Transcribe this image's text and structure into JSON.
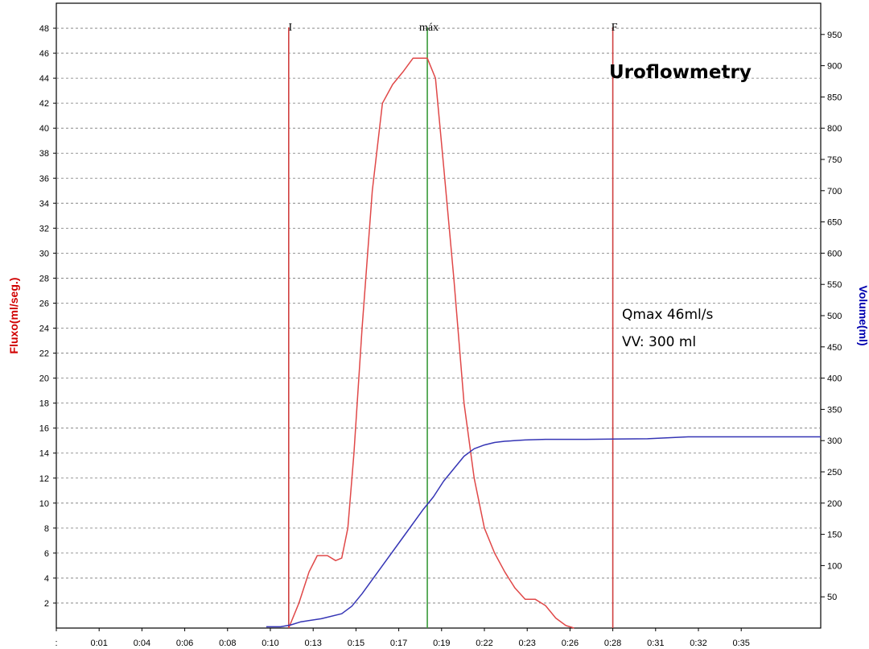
{
  "chart_data": {
    "type": "line",
    "title": "Uroflowmetry",
    "annotations": [
      "Qmax 46ml/s",
      "VV: 300 ml"
    ],
    "ylabel": "Fluxo(ml/seg.)",
    "y2label": "Volume(ml)",
    "x_ticks": [
      ":",
      "0:01",
      "0:04",
      "0:06",
      "0:08",
      "0:10",
      "0:13",
      "0:15",
      "0:17",
      "0:19",
      "0:22",
      "0:23",
      "0:26",
      "0:28",
      "0:31",
      "0:32",
      "0:35"
    ],
    "y_ticks": [
      2,
      4,
      6,
      8,
      10,
      12,
      14,
      16,
      18,
      20,
      22,
      24,
      26,
      28,
      30,
      32,
      34,
      36,
      38,
      40,
      42,
      44,
      46,
      48
    ],
    "y2_ticks": [
      50,
      100,
      150,
      200,
      250,
      300,
      350,
      400,
      450,
      500,
      550,
      600,
      650,
      700,
      750,
      800,
      850,
      900,
      950
    ],
    "xlim_seconds": [
      -1,
      36.5
    ],
    "ylim": [
      0,
      50
    ],
    "y2lim": [
      0,
      1000
    ],
    "grid": true,
    "markers": [
      {
        "label": "I",
        "x": 10.4,
        "color": "#d04040"
      },
      {
        "label": "máx",
        "x": 17.2,
        "color": "#3a9a3a"
      },
      {
        "label": "F",
        "x": 26.3,
        "color": "#d04040"
      }
    ],
    "series": [
      {
        "color": "#e04848",
        "axis": "left",
        "x": [
          10.4,
          10.9,
          11.4,
          11.8,
          12.3,
          12.7,
          13.0,
          13.3,
          13.6,
          14.0,
          14.5,
          15.0,
          15.5,
          16.0,
          16.5,
          16.8,
          17.2,
          17.6,
          18.0,
          18.5,
          19.0,
          19.5,
          20.0,
          20.5,
          21.0,
          21.5,
          22.0,
          22.5,
          23.0,
          23.5,
          24.0,
          24.4
        ],
        "y": [
          0,
          2,
          4.5,
          5.8,
          5.8,
          5.4,
          5.6,
          8,
          14,
          24,
          35,
          42,
          43.5,
          44.5,
          45.6,
          45.6,
          45.6,
          44,
          37,
          28,
          18,
          12,
          8,
          6,
          4.5,
          3.2,
          2.3,
          2.3,
          1.8,
          0.8,
          0.2,
          0
        ]
      },
      {
        "color": "#3535b5",
        "axis": "right",
        "x": [
          9.3,
          10.0,
          10.5,
          11.0,
          12.0,
          13.0,
          13.5,
          14.0,
          15.0,
          16.0,
          17.0,
          17.5,
          18.0,
          18.5,
          19.0,
          19.5,
          20.0,
          20.5,
          21.0,
          22.0,
          23.0,
          25.0,
          28.0,
          30.0,
          33.0,
          36.5
        ],
        "y": [
          2,
          2,
          5,
          10,
          15,
          23,
          35,
          55,
          100,
          145,
          190,
          210,
          235,
          255,
          275,
          287,
          293,
          297,
          299,
          301,
          302,
          302,
          303,
          306,
          306,
          306
        ]
      }
    ]
  }
}
